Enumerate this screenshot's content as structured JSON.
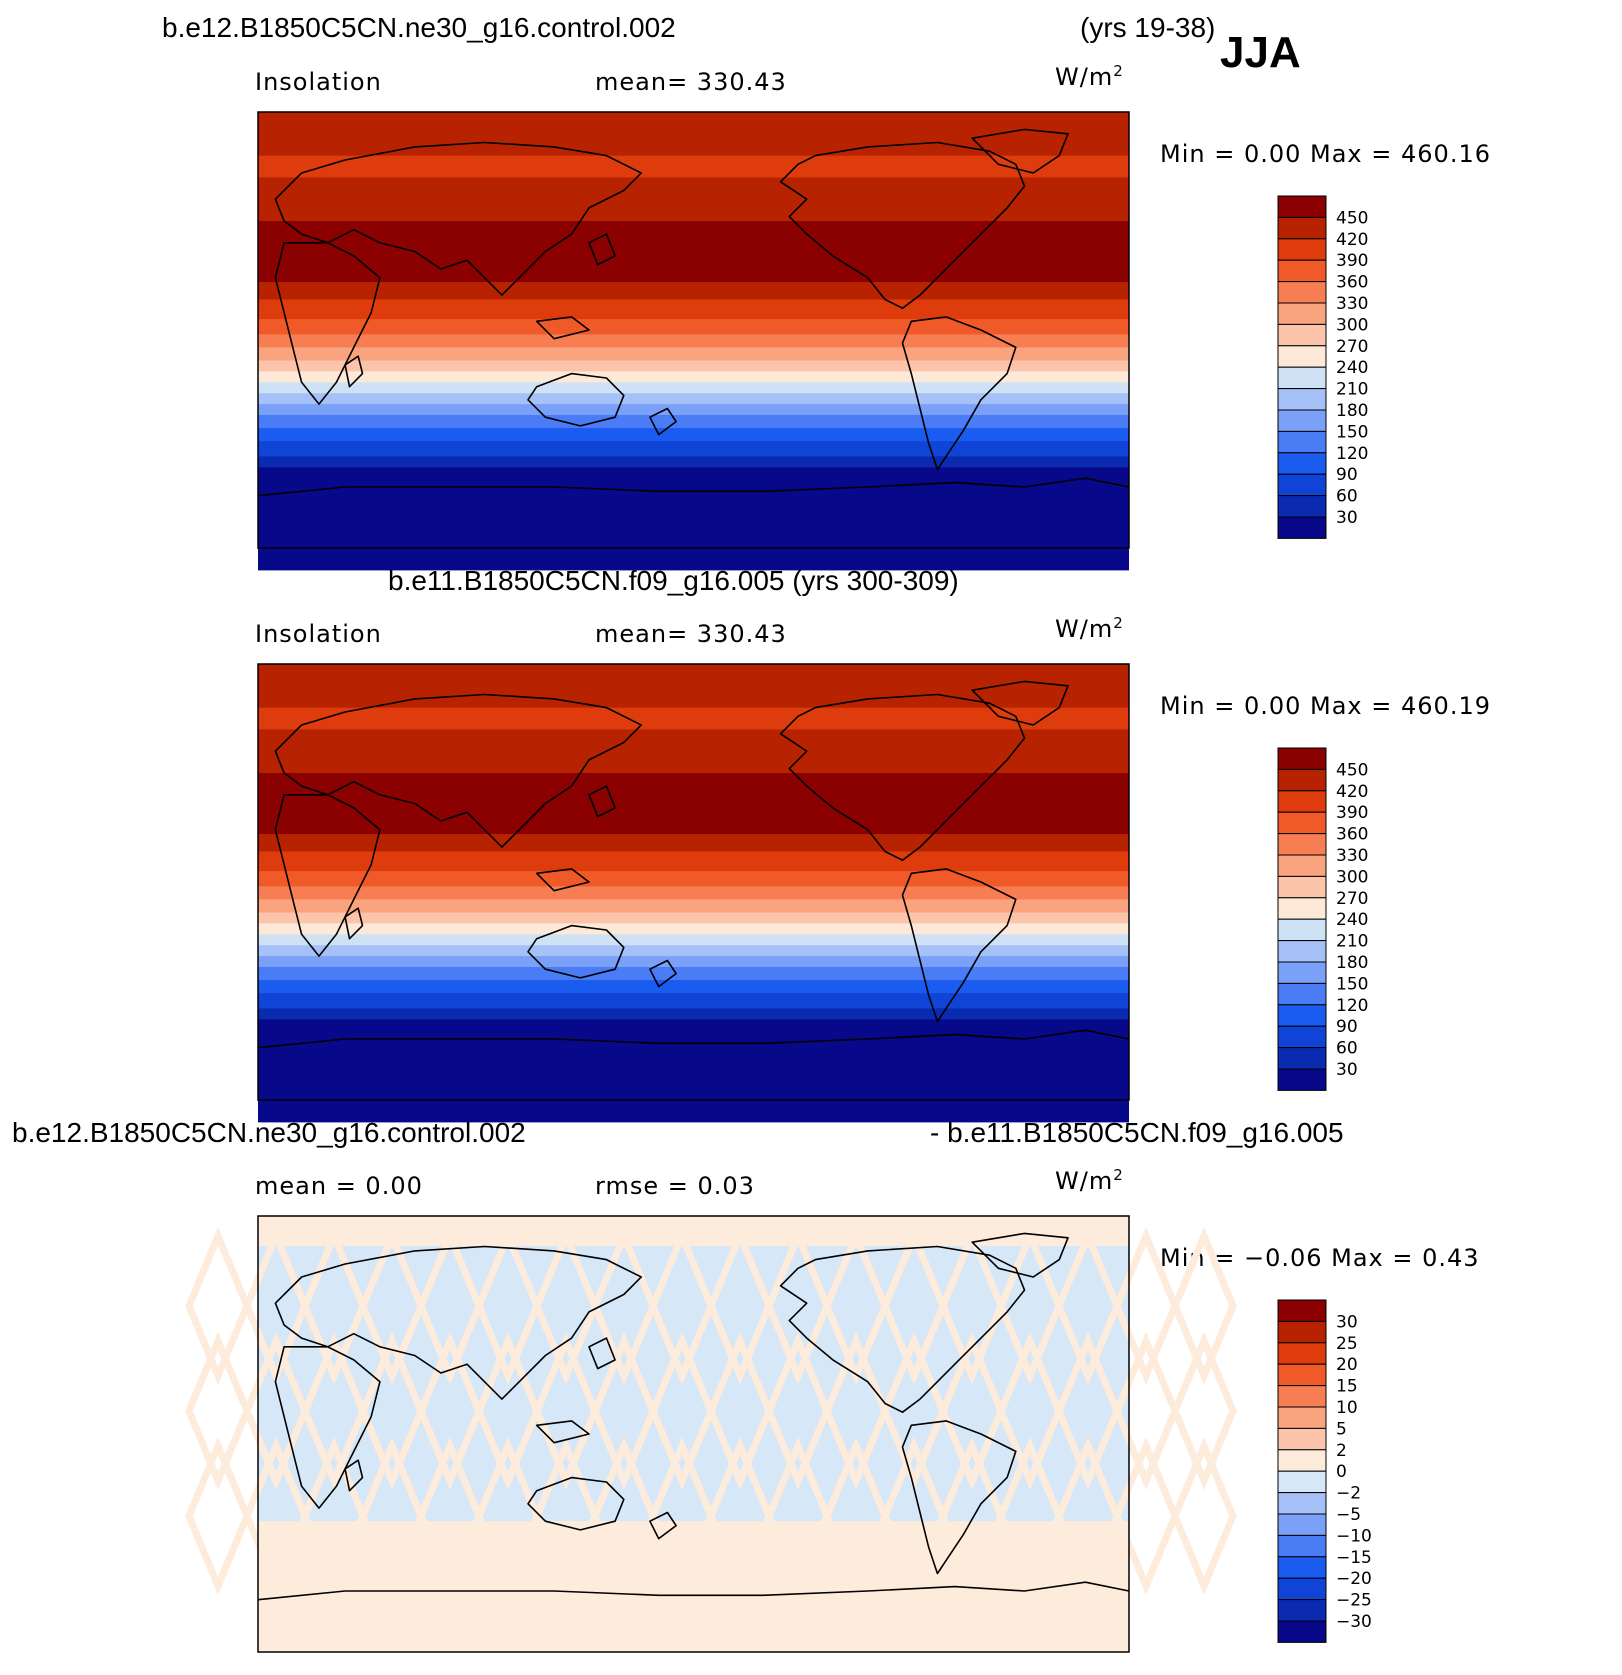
{
  "season": "JJA",
  "panels": [
    {
      "title_left": "b.e12.B1850C5CN.ne30_g16.control.002",
      "title_right": "(yrs 19-38)",
      "left_label": "Insolation",
      "center_label": "mean=  330.43",
      "units_main": "W/m",
      "units_exp": "2",
      "minmax": "Min =     0.00  Max  =  460.16",
      "kind": "insolation",
      "colorbar": {
        "colors": [
          "#08088a",
          "#0a2bb0",
          "#0f44d6",
          "#1a5cf0",
          "#4a7cf5",
          "#7ba0f7",
          "#a6c1f7",
          "#cfe2f5",
          "#fde9d8",
          "#fbc4ab",
          "#f9a47e",
          "#f77e52",
          "#f05a28",
          "#de3c0c",
          "#b72300",
          "#8b0000"
        ],
        "levels": [
          "30",
          "60",
          "90",
          "120",
          "150",
          "180",
          "210",
          "240",
          "270",
          "300",
          "330",
          "360",
          "390",
          "420",
          "450"
        ]
      }
    },
    {
      "title_left": "b.e11.B1850C5CN.f09_g16.005 (yrs 300-309)",
      "title_right": "",
      "left_label": "Insolation",
      "center_label": "mean=  330.43",
      "units_main": "W/m",
      "units_exp": "2",
      "minmax": "Min =     0.00  Max  =  460.19",
      "kind": "insolation",
      "colorbar": {
        "colors": [
          "#08088a",
          "#0a2bb0",
          "#0f44d6",
          "#1a5cf0",
          "#4a7cf5",
          "#7ba0f7",
          "#a6c1f7",
          "#cfe2f5",
          "#fde9d8",
          "#fbc4ab",
          "#f9a47e",
          "#f77e52",
          "#f05a28",
          "#de3c0c",
          "#b72300",
          "#8b0000"
        ],
        "levels": [
          "30",
          "60",
          "90",
          "120",
          "150",
          "180",
          "210",
          "240",
          "270",
          "300",
          "330",
          "360",
          "390",
          "420",
          "450"
        ]
      }
    },
    {
      "title_left": "b.e12.B1850C5CN.ne30_g16.control.002",
      "title_right": "- b.e11.B1850C5CN.f09_g16.005",
      "left_label": "mean  =     0.00",
      "center_label": "rmse  =     0.03",
      "units_main": "W/m",
      "units_exp": "2",
      "minmax": "Min =   −0.06  Max  =     0.43",
      "kind": "difference",
      "colorbar": {
        "colors": [
          "#08088a",
          "#0a2bb0",
          "#0f44d6",
          "#1a5cf0",
          "#4a7cf5",
          "#7ba0f7",
          "#a6c1f7",
          "#d6e8f8",
          "#fdebdc",
          "#fbc4ab",
          "#f9a47e",
          "#f77e52",
          "#f05a28",
          "#de3c0c",
          "#b72300",
          "#8b0000"
        ],
        "levels": [
          "−30",
          "−25",
          "−20",
          "−15",
          "−10",
          "−5",
          "−2",
          "0",
          "2",
          "5",
          "10",
          "15",
          "20",
          "25",
          "30"
        ]
      }
    }
  ]
}
